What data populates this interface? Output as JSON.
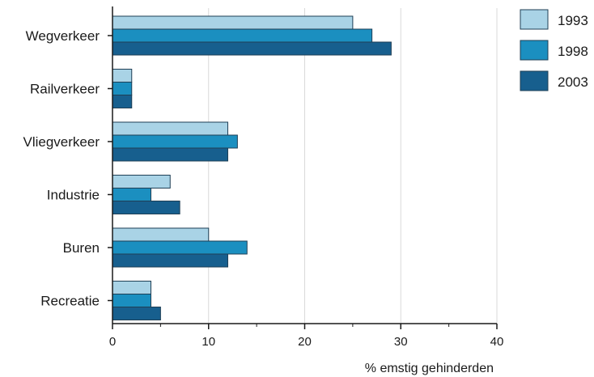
{
  "chart_data": {
    "type": "bar",
    "orientation": "horizontal",
    "categories": [
      "Wegverkeer",
      "Railverkeer",
      "Vliegverkeer",
      "Industrie",
      "Buren",
      "Recreatie"
    ],
    "series": [
      {
        "name": "1993",
        "color": "#a9d3e6",
        "values": [
          25,
          2,
          12,
          6,
          10,
          4
        ]
      },
      {
        "name": "1998",
        "color": "#1b8fc0",
        "values": [
          27,
          2,
          13,
          4,
          14,
          4
        ]
      },
      {
        "name": "2003",
        "color": "#175f8e",
        "values": [
          29,
          2,
          12,
          7,
          12,
          5
        ]
      }
    ],
    "xlabel": "% emstig gehinderden",
    "xlim": [
      0,
      40
    ],
    "xticks": [
      0,
      10,
      20,
      30,
      40
    ],
    "grid": true,
    "legend_position": "top-right"
  }
}
